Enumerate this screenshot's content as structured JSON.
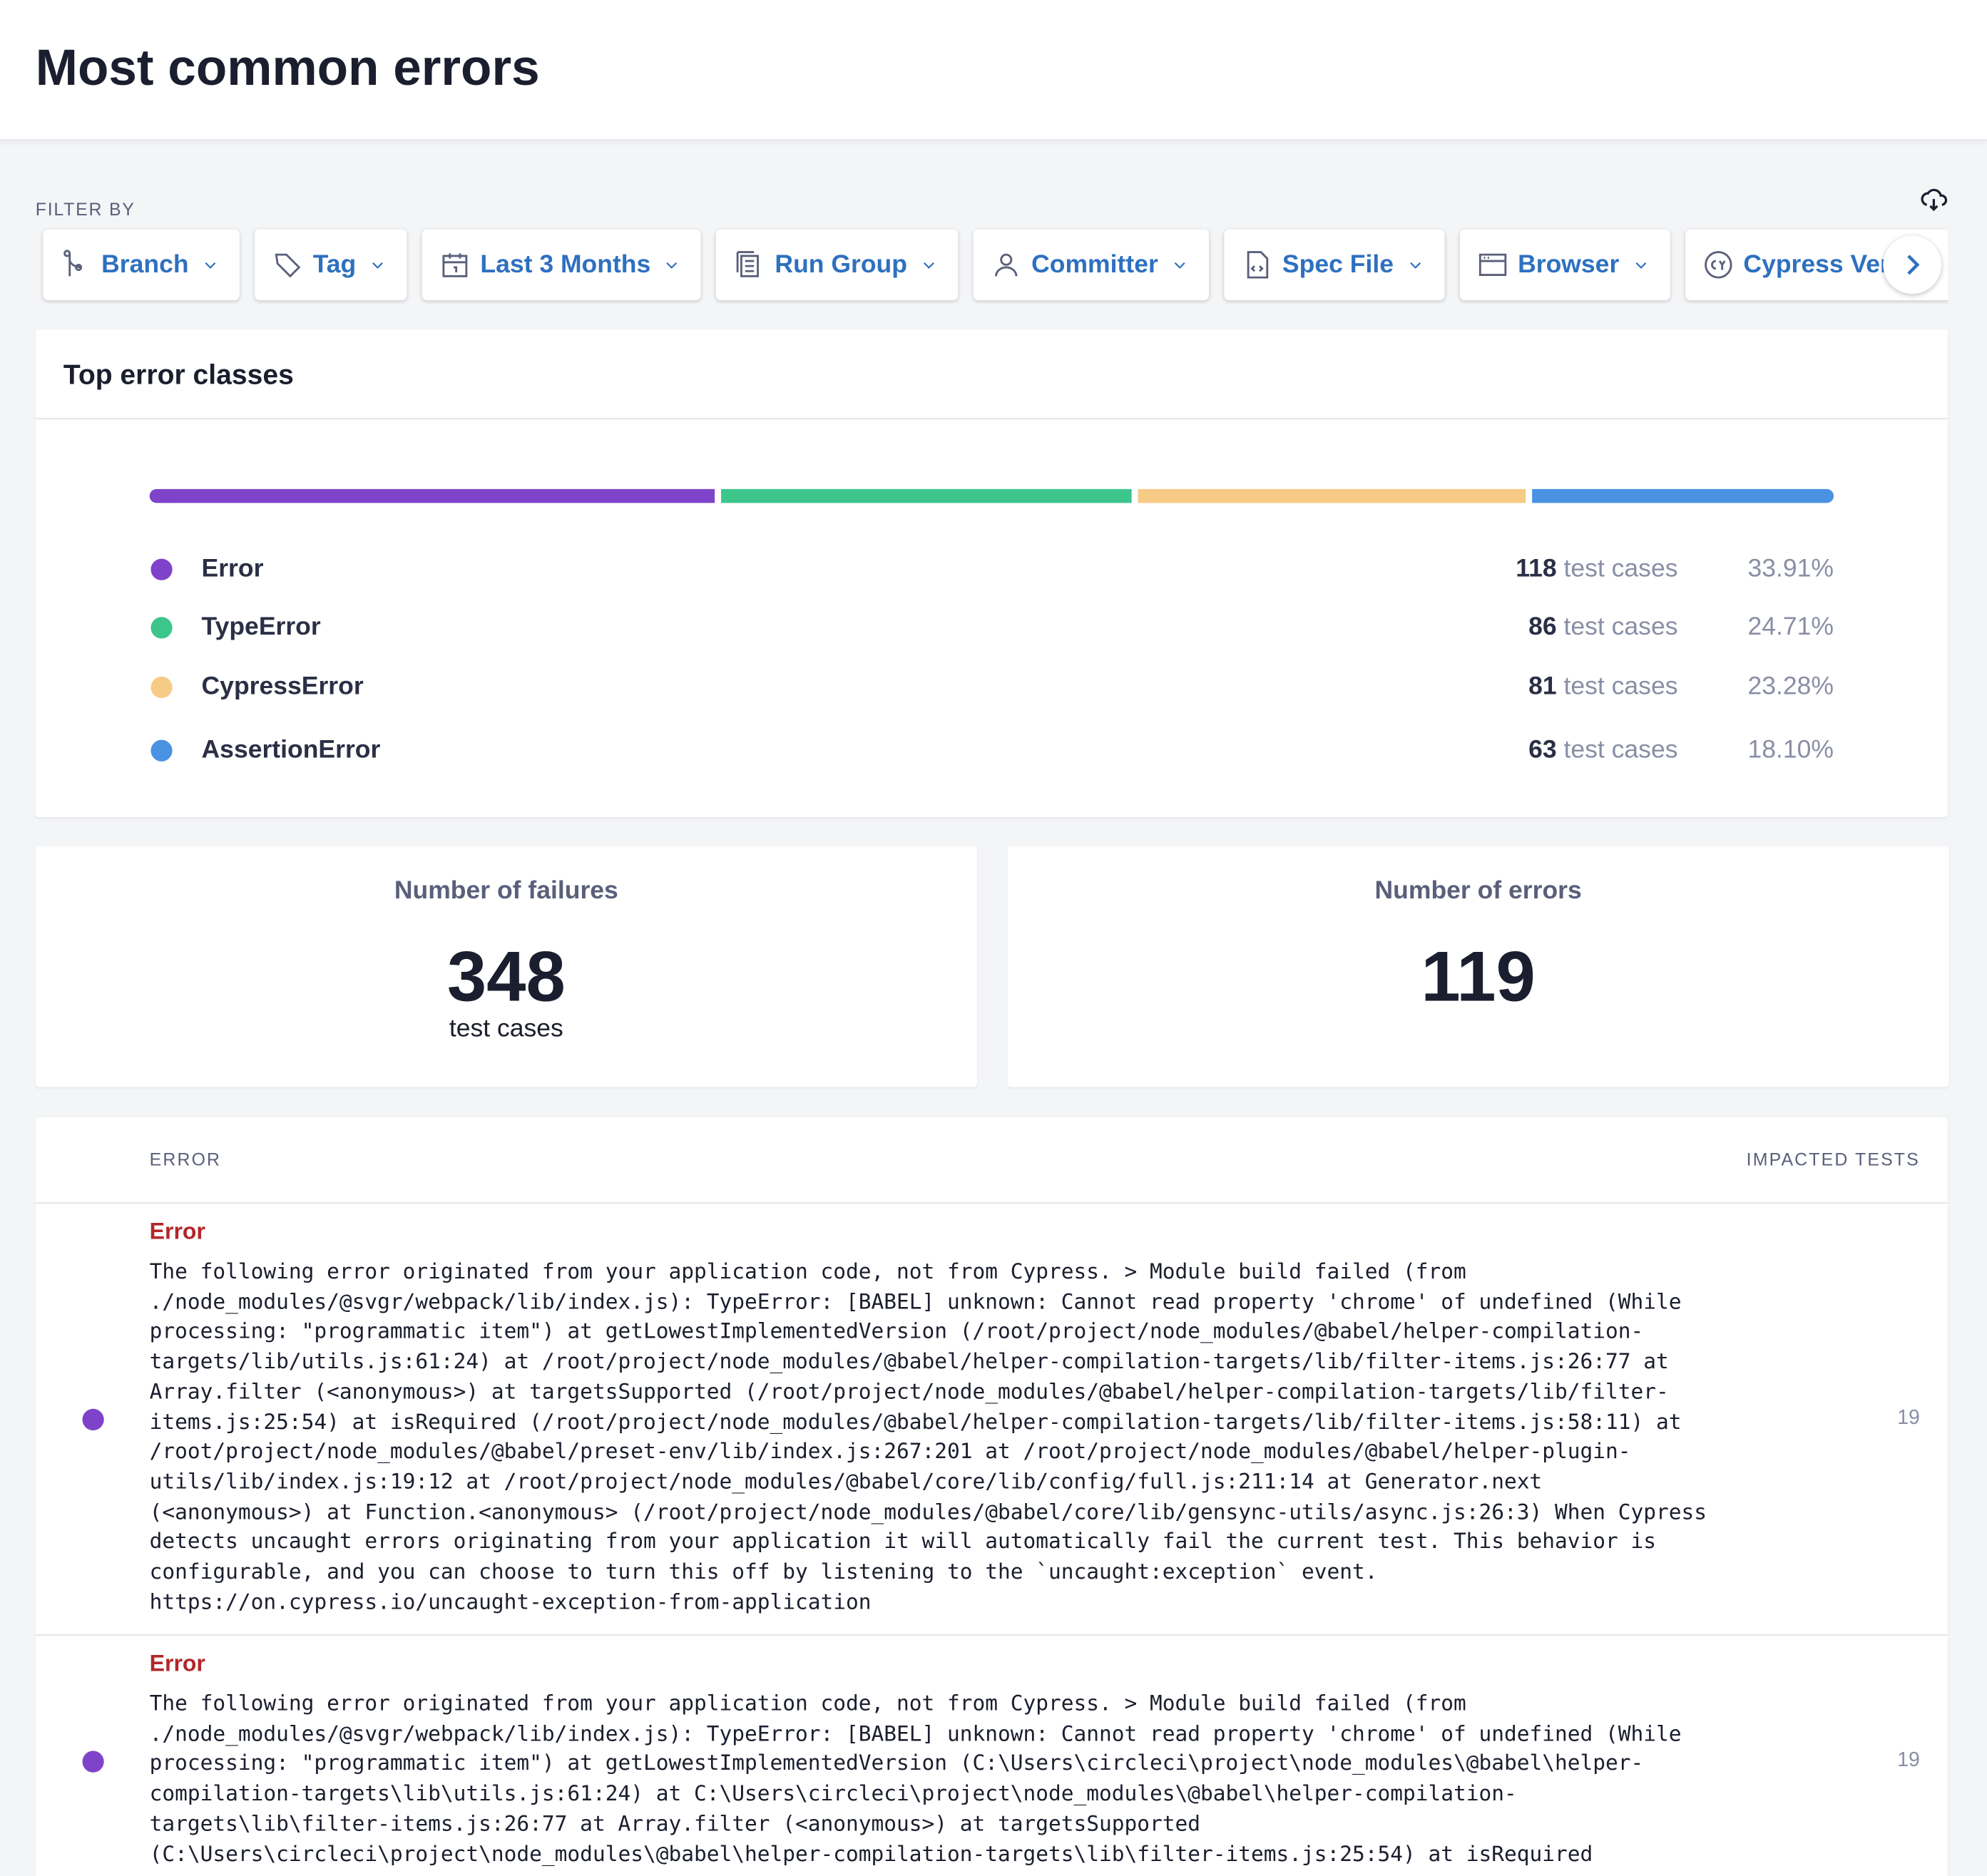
{
  "header": {
    "title": "Most common errors"
  },
  "filters": {
    "label": "FILTER BY",
    "items": [
      "Branch",
      "Tag",
      "Last 3 Months",
      "Run Group",
      "Committer",
      "Spec File",
      "Browser",
      "Cypress Version"
    ]
  },
  "top_error_classes": {
    "title": "Top error classes",
    "unit": "test cases",
    "rows": [
      {
        "name": "Error",
        "count": 118,
        "percent": "33.91%",
        "color": "#7f43c9"
      },
      {
        "name": "TypeError",
        "count": 86,
        "percent": "24.71%",
        "color": "#3cc68c"
      },
      {
        "name": "CypressError",
        "count": 81,
        "percent": "23.28%",
        "color": "#f6cb86"
      },
      {
        "name": "AssertionError",
        "count": 63,
        "percent": "18.10%",
        "color": "#4a92e2"
      }
    ]
  },
  "stats": {
    "failures": {
      "label": "Number of failures",
      "value": 348,
      "unit": "test cases"
    },
    "errors": {
      "label": "Number of errors",
      "value": 119
    }
  },
  "table": {
    "headers": [
      "ERROR",
      "IMPACTED TESTS"
    ],
    "rows": [
      {
        "class": "Error",
        "message": "The following error originated from your application code, not from Cypress. > Module build failed (from ./node_modules/@svgr/webpack/lib/index.js): TypeError: [BABEL] unknown: Cannot read property 'chrome' of undefined (While processing: \"programmatic item\") at getLowestImplementedVersion (/root/project/node_modules/@babel/helper-compilation-targets/lib/utils.js:61:24) at /root/project/node_modules/@babel/helper-compilation-targets/lib/filter-items.js:26:77 at Array.filter (<anonymous>) at targetsSupported (/root/project/node_modules/@babel/helper-compilation-targets/lib/filter-items.js:25:54) at isRequired (/root/project/node_modules/@babel/helper-compilation-targets/lib/filter-items.js:58:11) at /root/project/node_modules/@babel/preset-env/lib/index.js:267:201 at /root/project/node_modules/@babel/helper-plugin-utils/lib/index.js:19:12 at /root/project/node_modules/@babel/core/lib/config/full.js:211:14 at Generator.next (<anonymous>) at Function.<anonymous> (/root/project/node_modules/@babel/core/lib/gensync-utils/async.js:26:3) When Cypress detects uncaught errors originating from your application it will automatically fail the current test. This behavior is configurable, and you can choose to turn this off by listening to the `uncaught:exception` event. https://on.cypress.io/uncaught-exception-from-application",
        "impacted": 19
      },
      {
        "class": "Error",
        "message": "The following error originated from your application code, not from Cypress. > Module build failed (from ./node_modules/@svgr/webpack/lib/index.js): TypeError: [BABEL] unknown: Cannot read property 'chrome' of undefined (While processing: \"programmatic item\") at getLowestImplementedVersion (C:\\Users\\circleci\\project\\node_modules\\@babel\\helper-compilation-targets\\lib\\utils.js:61:24) at C:\\Users\\circleci\\project\\node_modules\\@babel\\helper-compilation-targets\\lib\\filter-items.js:26:77 at Array.filter (<anonymous>) at targetsSupported (C:\\Users\\circleci\\project\\node_modules\\@babel\\helper-compilation-targets\\lib\\filter-items.js:25:54) at isRequired",
        "impacted": 19
      }
    ]
  }
}
